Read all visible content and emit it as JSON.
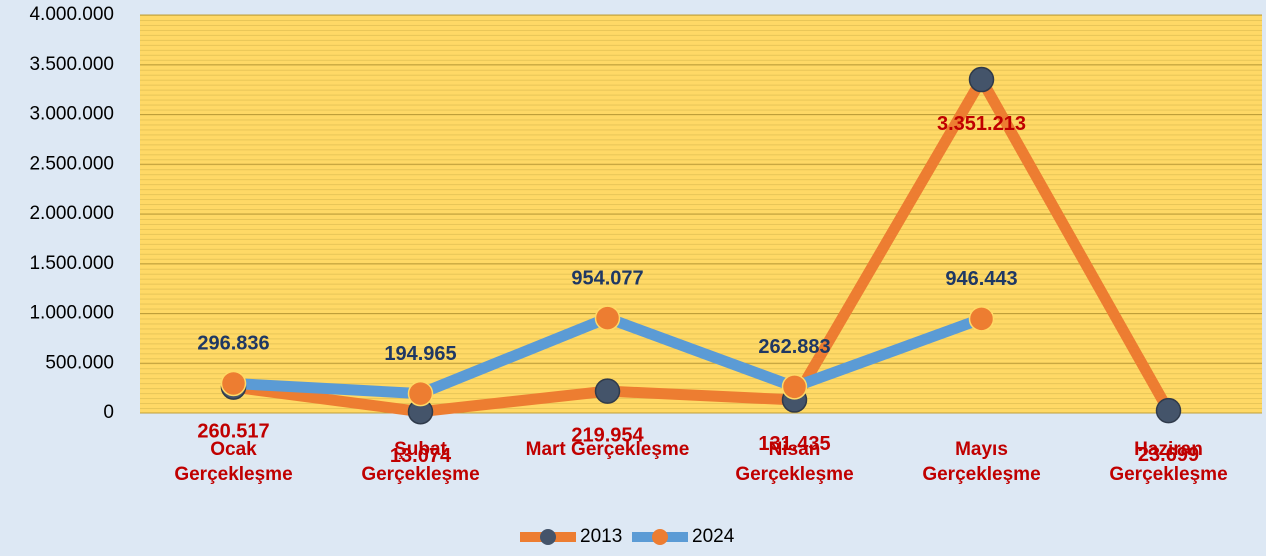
{
  "chart_data": {
    "type": "line",
    "categories": [
      "Ocak Gerçekleşme",
      "Şubat Gerçekleşme",
      "Mart Gerçekleşme",
      "Nisan Gerçekleşme",
      "Mayıs Gerçekleşme",
      "Haziran Gerçekleşme"
    ],
    "series": [
      {
        "name": "2013",
        "color": "#ed7d31",
        "marker_color": "#44546a",
        "label_color": "#c00000",
        "values": [
          260517,
          13074,
          219954,
          131435,
          3351213,
          23699
        ],
        "value_labels": [
          "260.517",
          "13.074",
          "219.954",
          "131.435",
          "3.351.213",
          "23.699"
        ]
      },
      {
        "name": "2024",
        "color": "#5b9bd5",
        "marker_color": "#ed7d31",
        "label_color": "#1f3864",
        "values": [
          296836,
          194965,
          954077,
          262883,
          946443,
          null
        ],
        "value_labels": [
          "296.836",
          "194.965",
          "954.077",
          "262.883",
          "946.443",
          null
        ]
      }
    ],
    "ylim": [
      0,
      4000000
    ],
    "yticks": [
      0,
      {
        "value": 500000,
        "label": "500.000"
      },
      {
        "value": 1000000,
        "label": "1.000.000"
      },
      {
        "value": 1500000,
        "label": "1.500.000"
      },
      {
        "value": 2000000,
        "label": "2.000.000"
      },
      {
        "value": 2500000,
        "label": "2.500.000"
      },
      {
        "value": 3000000,
        "label": "3.000.000"
      },
      {
        "value": 3500000,
        "label": "3.500.000"
      },
      {
        "value": 4000000,
        "label": "4.000.000"
      }
    ],
    "grid": true,
    "legend": "bottom"
  }
}
